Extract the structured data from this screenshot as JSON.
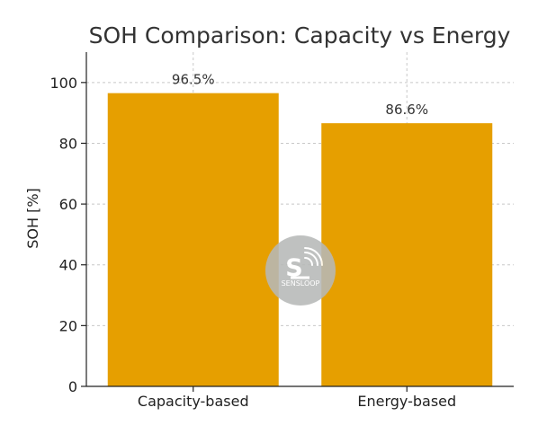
{
  "chart_data": {
    "type": "bar",
    "title": "SOH Comparison: Capacity vs Energy",
    "xlabel": "",
    "ylabel": "SOH [%]",
    "categories": [
      "Capacity-based",
      "Energy-based"
    ],
    "values": [
      96.5,
      86.6
    ],
    "data_labels": [
      "96.5%",
      "86.6%"
    ],
    "ylim": [
      0,
      110
    ],
    "yticks": [
      0,
      20,
      40,
      60,
      80,
      100
    ],
    "ytick_labels": [
      "0",
      "20",
      "40",
      "60",
      "80",
      "100"
    ],
    "grid": true,
    "bar_color": "#e69f00"
  },
  "watermark": {
    "text": "SENSLOOP",
    "color": "#9aa3a8"
  }
}
